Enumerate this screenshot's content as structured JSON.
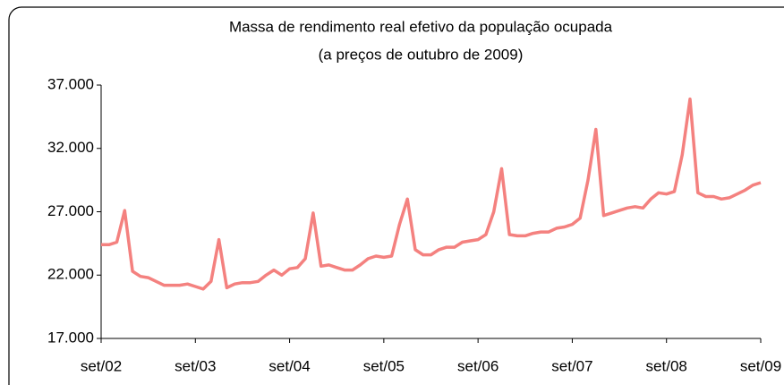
{
  "chart_data": {
    "type": "line",
    "title": "Massa de rendimento real efetivo da população ocupada",
    "subtitle": "(a preços de outubro de 2009)",
    "categories": [
      "set/02",
      null,
      null,
      null,
      null,
      null,
      null,
      null,
      null,
      null,
      null,
      null,
      "set/03",
      null,
      null,
      null,
      null,
      null,
      null,
      null,
      null,
      null,
      null,
      null,
      "set/04",
      null,
      null,
      null,
      null,
      null,
      null,
      null,
      null,
      null,
      null,
      null,
      "set/05",
      null,
      null,
      null,
      null,
      null,
      null,
      null,
      null,
      null,
      null,
      null,
      "set/06",
      null,
      null,
      null,
      null,
      null,
      null,
      null,
      null,
      null,
      null,
      null,
      "set/07",
      null,
      null,
      null,
      null,
      null,
      null,
      null,
      null,
      null,
      null,
      null,
      "set/08",
      null,
      null,
      null,
      null,
      null,
      null,
      null,
      null,
      null,
      null,
      null,
      "set/09"
    ],
    "series": [
      {
        "name": "Massa de rendimento",
        "color": "#f4817f",
        "values": [
          24400,
          24400,
          24600,
          27100,
          22300,
          21900,
          21800,
          21500,
          21200,
          21200,
          21200,
          21300,
          21100,
          20900,
          21500,
          24800,
          21000,
          21300,
          21400,
          21400,
          21500,
          22000,
          22400,
          22000,
          22500,
          22600,
          23300,
          26900,
          22700,
          22800,
          22600,
          22400,
          22400,
          22800,
          23300,
          23500,
          23400,
          23500,
          26000,
          28000,
          24000,
          23600,
          23600,
          24000,
          24200,
          24200,
          24600,
          24700,
          24800,
          25200,
          27000,
          30400,
          25200,
          25100,
          25100,
          25300,
          25400,
          25400,
          25700,
          25800,
          26000,
          26500,
          29500,
          33500,
          26700,
          26900,
          27100,
          27300,
          27400,
          27300,
          28000,
          28500,
          28400,
          28600,
          31500,
          35900,
          28500,
          28200,
          28200,
          28000,
          28100,
          28400,
          28700,
          29100,
          29300
        ]
      }
    ],
    "ylim": [
      17000,
      37000
    ],
    "yticks": [
      {
        "value": 17000,
        "label": "17.000"
      },
      {
        "value": 22000,
        "label": "22.000"
      },
      {
        "value": 27000,
        "label": "27.000"
      },
      {
        "value": 32000,
        "label": "32.000"
      },
      {
        "value": 37000,
        "label": "37.000"
      }
    ],
    "grid": false
  }
}
